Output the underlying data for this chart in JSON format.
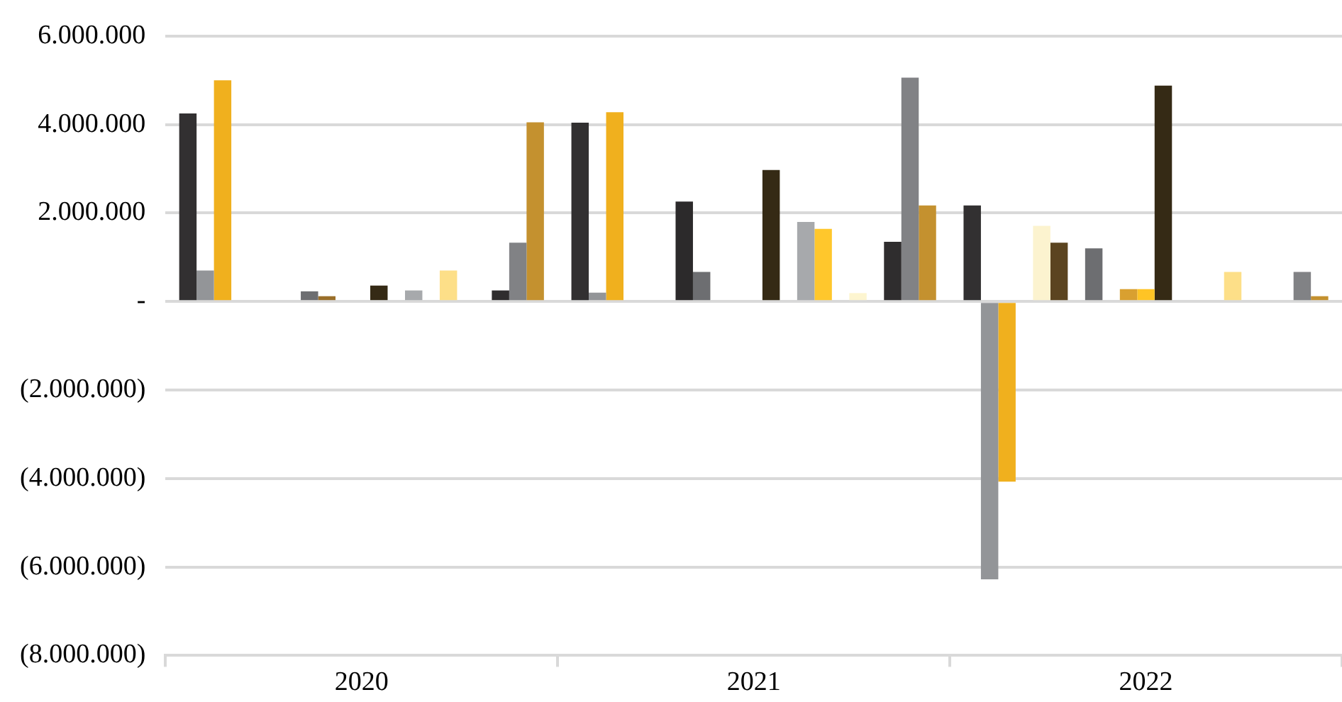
{
  "chart_data": {
    "type": "bar",
    "categories": [
      "2020",
      "2021",
      "2022"
    ],
    "series": [
      {
        "color": "#323031",
        "values": [
          4250000,
          4040000,
          2170000
        ]
      },
      {
        "color": "#939598",
        "values": [
          700000,
          200000,
          -6280000
        ]
      },
      {
        "color": "#f0b01e",
        "values": [
          5000000,
          4280000,
          -4070000
        ]
      },
      {
        "values": [
          null,
          null,
          null
        ]
      },
      {
        "color": "#fcf3cf",
        "values": [
          null,
          null,
          1710000
        ]
      },
      {
        "color": "#5b4420",
        "values": [
          null,
          null,
          1330000
        ]
      },
      {
        "color": "#2c2a2b",
        "values": [
          null,
          2260000,
          null
        ]
      },
      {
        "color": "#6d6e71",
        "values": [
          230000,
          670000,
          1200000
        ]
      },
      {
        "color": "#9a6f2a",
        "values": [
          120000,
          null,
          null
        ]
      },
      {
        "color": "#d9a030",
        "values": [
          null,
          null,
          280000
        ]
      },
      {
        "color": "#ffc425",
        "values": [
          null,
          null,
          280000
        ]
      },
      {
        "color": "#352a15",
        "values": [
          360000,
          2970000,
          4880000
        ]
      },
      {
        "values": [
          null,
          null,
          null
        ]
      },
      {
        "color": "#a7a9ac",
        "values": [
          250000,
          1800000,
          null
        ]
      },
      {
        "color": "#ffc72c",
        "values": [
          null,
          1640000,
          null
        ]
      },
      {
        "color": "#fddf88",
        "values": [
          700000,
          null,
          670000
        ]
      },
      {
        "color": "#fdf5d0",
        "values": [
          null,
          190000,
          null
        ]
      },
      {
        "values": [
          null,
          null,
          null
        ]
      },
      {
        "color": "#2f2d2e",
        "values": [
          250000,
          1350000,
          null
        ]
      },
      {
        "color": "#818285",
        "values": [
          1330000,
          5060000,
          670000
        ]
      },
      {
        "color": "#c4912f",
        "values": [
          4050000,
          2170000,
          120000
        ]
      }
    ],
    "ylim": [
      -8000000,
      6000000
    ],
    "yticks": [
      {
        "value": -8000000,
        "label": "(8.000.000)"
      },
      {
        "value": -6000000,
        "label": "(6.000.000)"
      },
      {
        "value": -4000000,
        "label": "(4.000.000)"
      },
      {
        "value": -2000000,
        "label": "(2.000.000)"
      },
      {
        "value": 0,
        "label": "-"
      },
      {
        "value": 2000000,
        "label": "2.000.000"
      },
      {
        "value": 4000000,
        "label": "4.000.000"
      },
      {
        "value": 6000000,
        "label": "6.000.000"
      }
    ],
    "grid": "y",
    "legend": false
  }
}
